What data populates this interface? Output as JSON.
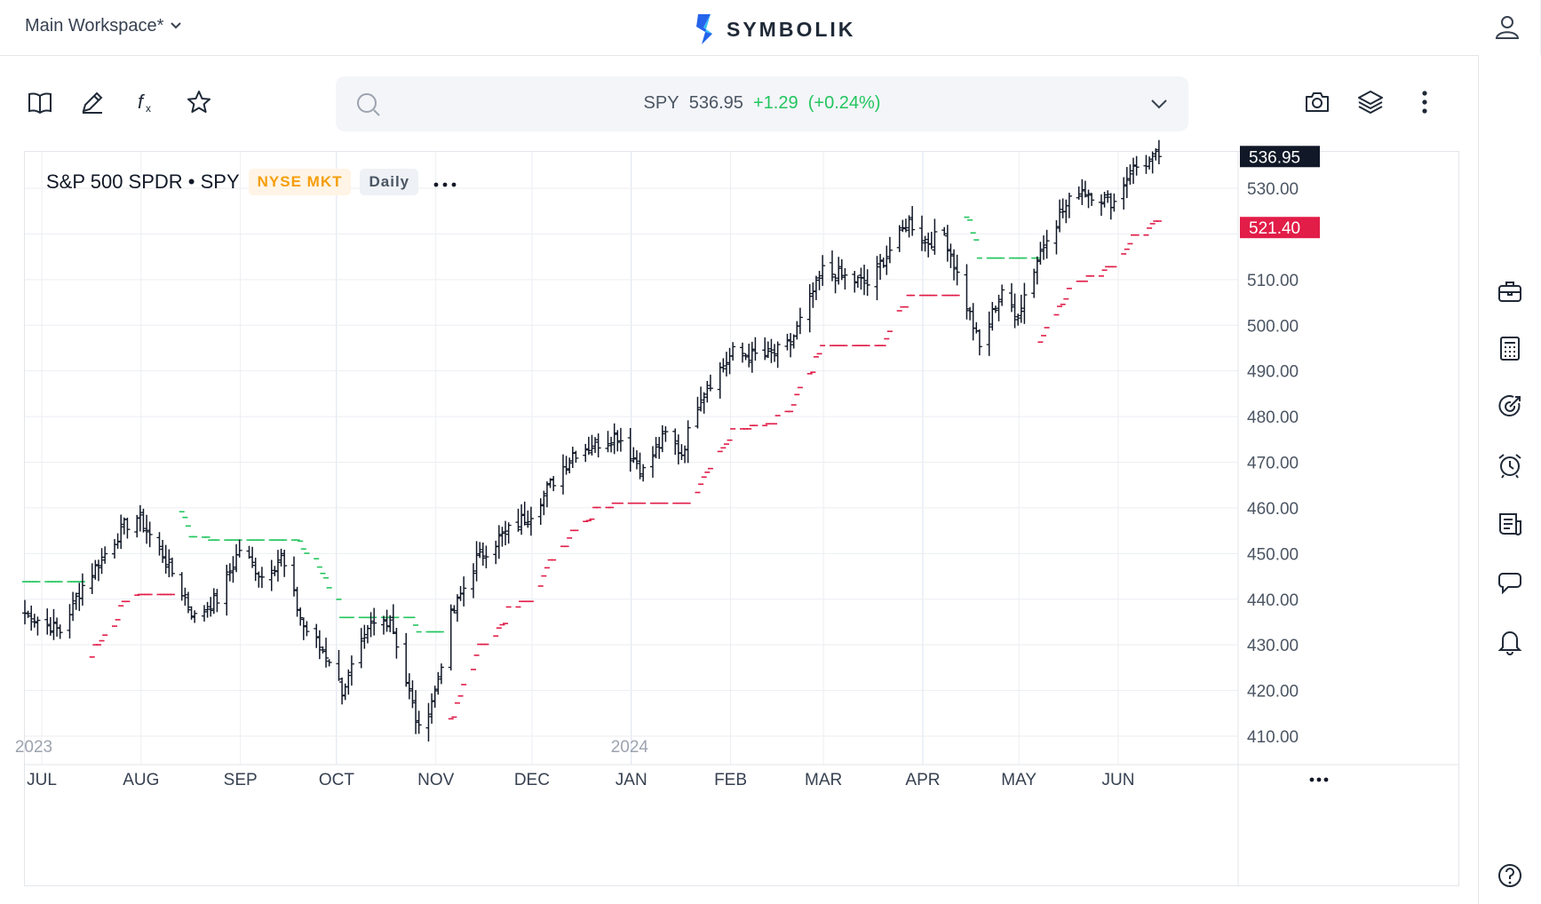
{
  "topbar": {
    "workspace_label": "Main Workspace*",
    "brand_name": "SYMBOLIK"
  },
  "search": {
    "symbol": "SPY",
    "price": "536.95",
    "change": "+1.29",
    "change_pct": "(+0.24%)"
  },
  "legend": {
    "name": "S&P 500 SPDR • SPY",
    "exchange": "NYSE MKT",
    "timeframe": "Daily"
  },
  "colors": {
    "up_band": "#22c55e",
    "down_band": "#e11d48",
    "price_tag_bg": "#111827",
    "stop_tag_bg": "#e11d48",
    "accent": "#22c55e"
  },
  "icons": {
    "toolbar": [
      "book-icon",
      "pencil-icon",
      "function-icon",
      "star-icon"
    ],
    "toolbar_right": [
      "camera-icon",
      "layers-icon",
      "more-vertical-icon"
    ],
    "right_rail": [
      "briefcase-icon",
      "calculator-icon",
      "target-icon",
      "alarm-clock-icon",
      "news-icon",
      "chat-icon",
      "bell-icon",
      "help-icon"
    ]
  },
  "chart_data": {
    "type": "ohlc-bar",
    "ylim": [
      405,
      540
    ],
    "y_ticks": [
      "530.00",
      "510.00",
      "500.00",
      "490.00",
      "480.00",
      "470.00",
      "460.00",
      "450.00",
      "440.00",
      "430.00",
      "420.00",
      "410.00"
    ],
    "last_price_tag": "536.95",
    "stop_price_tag": "521.40",
    "x_months": [
      "JUL",
      "AUG",
      "SEP",
      "OCT",
      "NOV",
      "DEC",
      "JAN",
      "FEB",
      "MAR",
      "APR",
      "MAY",
      "JUN"
    ],
    "year_labels": [
      "2023",
      "2024"
    ],
    "close_anchors": [
      [
        "2023-06-26",
        437
      ],
      [
        "2023-07-07",
        433
      ],
      [
        "2023-07-14",
        443
      ],
      [
        "2023-07-27",
        456
      ],
      [
        "2023-07-31",
        458
      ],
      [
        "2023-08-08",
        450
      ],
      [
        "2023-08-18",
        436
      ],
      [
        "2023-08-25",
        440
      ],
      [
        "2023-09-01",
        451
      ],
      [
        "2023-09-08",
        445
      ],
      [
        "2023-09-14",
        449
      ],
      [
        "2023-09-21",
        434
      ],
      [
        "2023-09-29",
        427
      ],
      [
        "2023-10-03",
        420
      ],
      [
        "2023-10-12",
        434
      ],
      [
        "2023-10-18",
        436
      ],
      [
        "2023-10-27",
        411
      ],
      [
        "2023-11-01",
        420
      ],
      [
        "2023-11-06",
        436
      ],
      [
        "2023-11-14",
        449
      ],
      [
        "2023-11-24",
        455
      ],
      [
        "2023-12-01",
        459
      ],
      [
        "2023-12-14",
        472
      ],
      [
        "2023-12-28",
        476
      ],
      [
        "2024-01-05",
        468
      ],
      [
        "2024-01-12",
        476
      ],
      [
        "2024-01-17",
        472
      ],
      [
        "2024-01-23",
        485
      ],
      [
        "2024-02-02",
        494
      ],
      [
        "2024-02-13",
        493
      ],
      [
        "2024-02-20",
        496
      ],
      [
        "2024-03-01",
        512
      ],
      [
        "2024-03-15",
        509
      ],
      [
        "2024-03-28",
        523
      ],
      [
        "2024-04-02",
        518
      ],
      [
        "2024-04-08",
        520
      ],
      [
        "2024-04-17",
        500
      ],
      [
        "2024-04-19",
        495
      ],
      [
        "2024-04-26",
        508
      ],
      [
        "2024-04-30",
        501
      ],
      [
        "2024-05-10",
        520
      ],
      [
        "2024-05-20",
        530
      ],
      [
        "2024-05-31",
        527
      ],
      [
        "2024-06-05",
        534
      ],
      [
        "2024-06-14",
        536.95
      ]
    ]
  }
}
